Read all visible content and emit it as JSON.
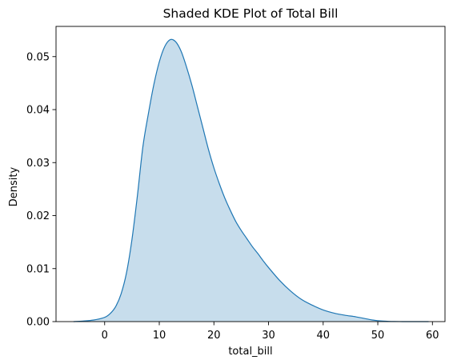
{
  "chart_data": {
    "type": "area",
    "title": "Shaded KDE Plot of Total Bill",
    "xlabel": "total_bill",
    "ylabel": "Density",
    "xlim": [
      -8.9,
      62.3
    ],
    "ylim": [
      0,
      0.0557
    ],
    "grid": false,
    "legend": "none",
    "x_ticks": [
      0,
      10,
      20,
      30,
      40,
      50,
      60
    ],
    "x_tick_labels": [
      "0",
      "10",
      "20",
      "30",
      "40",
      "50",
      "60"
    ],
    "y_ticks": [
      0,
      0.01,
      0.02,
      0.03,
      0.04,
      0.05
    ],
    "y_tick_labels": [
      "0.00",
      "0.01",
      "0.02",
      "0.03",
      "0.04",
      "0.05"
    ],
    "line_color": "#1f77b4",
    "fill_color": "#1f77b4",
    "fill_opacity": 0.25,
    "series": [
      {
        "x": [
          -5.7,
          -4,
          -2,
          0,
          1,
          2,
          3,
          4,
          5,
          6,
          7,
          8,
          9,
          10,
          11,
          12,
          13,
          14,
          15,
          16,
          17,
          18,
          19,
          20,
          21,
          22,
          23,
          24,
          25,
          26,
          27,
          28,
          29,
          30,
          32,
          34,
          36,
          38,
          40,
          42,
          44,
          46,
          48,
          49,
          50,
          51,
          52,
          53,
          54,
          55,
          56,
          58,
          59.3
        ],
        "values": [
          0.0,
          0.0001,
          0.0003,
          0.0008,
          0.0015,
          0.0028,
          0.0052,
          0.0092,
          0.0155,
          0.0238,
          0.033,
          0.0392,
          0.0447,
          0.049,
          0.0519,
          0.0532,
          0.0528,
          0.051,
          0.048,
          0.0445,
          0.0405,
          0.0365,
          0.0325,
          0.029,
          0.026,
          0.0233,
          0.021,
          0.0189,
          0.0172,
          0.0157,
          0.0142,
          0.0129,
          0.0115,
          0.0102,
          0.0078,
          0.0058,
          0.0042,
          0.0031,
          0.0022,
          0.0016,
          0.0012,
          0.0009,
          0.0005,
          0.0003,
          0.00018,
          0.0001,
          5e-05,
          2e-05,
          1e-05,
          0.0,
          0.0,
          0.0,
          0.0
        ]
      }
    ]
  }
}
